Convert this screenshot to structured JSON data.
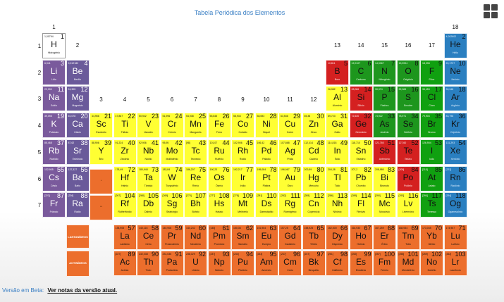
{
  "title": "Tabela Periódica dos Elementos",
  "group_labels": [
    "1",
    "2",
    "3",
    "4",
    "5",
    "6",
    "7",
    "8",
    "9",
    "10",
    "11",
    "12",
    "13",
    "14",
    "15",
    "16",
    "17",
    "18"
  ],
  "period_labels": [
    "1",
    "2",
    "3",
    "4",
    "5",
    "6",
    "7"
  ],
  "colors": {
    "alkali": "#7a5a9c",
    "alkaline_earth": "#6a5a9a",
    "transition": "#ffff33",
    "post_transition": "#ffff33",
    "metalloid": "#20a020",
    "nonmetal": "#1d961d",
    "halogen": "#10a010",
    "noble": "#2a7fc0",
    "metal_red": "#d42020",
    "lanthanide": "#ec6e2c",
    "actinide": "#ec6e2c",
    "hydrogen": "#ffffff"
  },
  "series_labels": {
    "lanthanides": "LANTANÍDEOS",
    "actinides": "ACTINÍDEOS"
  },
  "placeholder_labels": {
    "la": "*",
    "ac": "**"
  },
  "elements": [
    {
      "n": "1",
      "s": "H",
      "name": "Hidrogênio",
      "m": "1,00794",
      "row": 1,
      "col": 1,
      "cat": "hydrogen"
    },
    {
      "n": "2",
      "s": "He",
      "name": "Hélio",
      "m": "4,002602",
      "row": 1,
      "col": 18,
      "cat": "noble"
    },
    {
      "n": "3",
      "s": "Li",
      "name": "Lítio",
      "m": "6,941",
      "row": 2,
      "col": 1,
      "cat": "alkali"
    },
    {
      "n": "4",
      "s": "Be",
      "name": "Berílio",
      "m": "9,012182",
      "row": 2,
      "col": 2,
      "cat": "alkaline_earth"
    },
    {
      "n": "5",
      "s": "B",
      "name": "Boro",
      "m": "10,811",
      "row": 2,
      "col": 13,
      "cat": "metal_red"
    },
    {
      "n": "6",
      "s": "C",
      "name": "Carbono",
      "m": "12,0107",
      "row": 2,
      "col": 14,
      "cat": "nonmetal"
    },
    {
      "n": "7",
      "s": "N",
      "name": "Nitrogênio",
      "m": "14,0067",
      "row": 2,
      "col": 15,
      "cat": "nonmetal"
    },
    {
      "n": "8",
      "s": "O",
      "name": "Oxigênio",
      "m": "15,9994",
      "row": 2,
      "col": 16,
      "cat": "nonmetal"
    },
    {
      "n": "9",
      "s": "F",
      "name": "Flúor",
      "m": "18,998",
      "row": 2,
      "col": 17,
      "cat": "halogen"
    },
    {
      "n": "10",
      "s": "Ne",
      "name": "Neônio",
      "m": "20,1797",
      "row": 2,
      "col": 18,
      "cat": "noble"
    },
    {
      "n": "11",
      "s": "Na",
      "name": "Sódio",
      "m": "22,990",
      "row": 3,
      "col": 1,
      "cat": "alkali"
    },
    {
      "n": "12",
      "s": "Mg",
      "name": "Magnésio",
      "m": "24,305",
      "row": 3,
      "col": 2,
      "cat": "alkaline_earth"
    },
    {
      "n": "13",
      "s": "Al",
      "name": "Alumínio",
      "m": "26,982",
      "row": 3,
      "col": 13,
      "cat": "post_transition"
    },
    {
      "n": "14",
      "s": "Si",
      "name": "Silício",
      "m": "28,086",
      "row": 3,
      "col": 14,
      "cat": "metal_red"
    },
    {
      "n": "15",
      "s": "P",
      "name": "Fósforo",
      "m": "30,974",
      "row": 3,
      "col": 15,
      "cat": "nonmetal"
    },
    {
      "n": "16",
      "s": "S",
      "name": "Enxofre",
      "m": "32,065",
      "row": 3,
      "col": 16,
      "cat": "nonmetal"
    },
    {
      "n": "17",
      "s": "Cl",
      "name": "Cloro",
      "m": "35,453",
      "row": 3,
      "col": 17,
      "cat": "halogen"
    },
    {
      "n": "18",
      "s": "Ar",
      "name": "Argônio",
      "m": "39,948",
      "row": 3,
      "col": 18,
      "cat": "noble"
    },
    {
      "n": "19",
      "s": "K",
      "name": "Potássio",
      "m": "39,098",
      "row": 4,
      "col": 1,
      "cat": "alkali"
    },
    {
      "n": "20",
      "s": "Ca",
      "name": "Cálcio",
      "m": "40,078",
      "row": 4,
      "col": 2,
      "cat": "alkaline_earth"
    },
    {
      "n": "21",
      "s": "Sc",
      "name": "Escândio",
      "m": "44,956",
      "row": 4,
      "col": 3,
      "cat": "transition"
    },
    {
      "n": "22",
      "s": "Ti",
      "name": "Titânio",
      "m": "47,867",
      "row": 4,
      "col": 4,
      "cat": "transition"
    },
    {
      "n": "23",
      "s": "V",
      "name": "Vanádio",
      "m": "50,942",
      "row": 4,
      "col": 5,
      "cat": "transition"
    },
    {
      "n": "24",
      "s": "Cr",
      "name": "Crômio",
      "m": "51,996",
      "row": 4,
      "col": 6,
      "cat": "transition"
    },
    {
      "n": "25",
      "s": "Mn",
      "name": "Manganês",
      "m": "54,938",
      "row": 4,
      "col": 7,
      "cat": "transition"
    },
    {
      "n": "26",
      "s": "Fe",
      "name": "Ferro",
      "m": "55,845",
      "row": 4,
      "col": 8,
      "cat": "transition"
    },
    {
      "n": "27",
      "s": "Co",
      "name": "Cobalto",
      "m": "58,933",
      "row": 4,
      "col": 9,
      "cat": "transition"
    },
    {
      "n": "28",
      "s": "Ni",
      "name": "Níquel",
      "m": "58,693",
      "row": 4,
      "col": 10,
      "cat": "transition"
    },
    {
      "n": "29",
      "s": "Cu",
      "name": "Cobre",
      "m": "63,546",
      "row": 4,
      "col": 11,
      "cat": "transition"
    },
    {
      "n": "30",
      "s": "Zn",
      "name": "Zinco",
      "m": "65,38",
      "row": 4,
      "col": 12,
      "cat": "transition"
    },
    {
      "n": "31",
      "s": "Ga",
      "name": "Gálio",
      "m": "69,723",
      "row": 4,
      "col": 13,
      "cat": "post_transition"
    },
    {
      "n": "32",
      "s": "Ge",
      "name": "Germânio",
      "m": "72,630",
      "row": 4,
      "col": 14,
      "cat": "metal_red"
    },
    {
      "n": "33",
      "s": "As",
      "name": "Arsênio",
      "m": "74,922",
      "row": 4,
      "col": 15,
      "cat": "nonmetal"
    },
    {
      "n": "34",
      "s": "Se",
      "name": "Selênio",
      "m": "78,971",
      "row": 4,
      "col": 16,
      "cat": "nonmetal"
    },
    {
      "n": "35",
      "s": "Br",
      "name": "Bromo",
      "m": "79,904",
      "row": 4,
      "col": 17,
      "cat": "halogen"
    },
    {
      "n": "36",
      "s": "Kr",
      "name": "Criptônio",
      "m": "83,798",
      "row": 4,
      "col": 18,
      "cat": "noble"
    },
    {
      "n": "37",
      "s": "Rb",
      "name": "Rubídio",
      "m": "85,468",
      "row": 5,
      "col": 1,
      "cat": "alkali"
    },
    {
      "n": "38",
      "s": "Sr",
      "name": "Estrôncio",
      "m": "87,62",
      "row": 5,
      "col": 2,
      "cat": "alkaline_earth"
    },
    {
      "n": "39",
      "s": "Y",
      "name": "Ítrio",
      "m": "88,906",
      "row": 5,
      "col": 3,
      "cat": "transition"
    },
    {
      "n": "40",
      "s": "Zr",
      "name": "Zircônio",
      "m": "91,224",
      "row": 5,
      "col": 4,
      "cat": "transition"
    },
    {
      "n": "41",
      "s": "Nb",
      "name": "Nióbio",
      "m": "92,906",
      "row": 5,
      "col": 5,
      "cat": "transition"
    },
    {
      "n": "42",
      "s": "Mo",
      "name": "Molibdênio",
      "m": "95,95",
      "row": 5,
      "col": 6,
      "cat": "transition"
    },
    {
      "n": "43",
      "s": "Tc",
      "name": "Tecnécio",
      "m": "[98]",
      "row": 5,
      "col": 7,
      "cat": "transition"
    },
    {
      "n": "44",
      "s": "Ru",
      "name": "Rutênio",
      "m": "101,07",
      "row": 5,
      "col": 8,
      "cat": "transition"
    },
    {
      "n": "45",
      "s": "Rh",
      "name": "Ródio",
      "m": "102,906",
      "row": 5,
      "col": 9,
      "cat": "transition"
    },
    {
      "n": "46",
      "s": "Pd",
      "name": "Paládio",
      "m": "106,42",
      "row": 5,
      "col": 10,
      "cat": "transition"
    },
    {
      "n": "47",
      "s": "Ag",
      "name": "Prata",
      "m": "107,868",
      "row": 5,
      "col": 11,
      "cat": "transition"
    },
    {
      "n": "48",
      "s": "Cd",
      "name": "Cádmio",
      "m": "112,414",
      "row": 5,
      "col": 12,
      "cat": "transition"
    },
    {
      "n": "49",
      "s": "In",
      "name": "Índio",
      "m": "114,818",
      "row": 5,
      "col": 13,
      "cat": "post_transition"
    },
    {
      "n": "50",
      "s": "Sn",
      "name": "Estanho",
      "m": "118,710",
      "row": 5,
      "col": 14,
      "cat": "post_transition"
    },
    {
      "n": "51",
      "s": "Sb",
      "name": "Antimônio",
      "m": "121,760",
      "row": 5,
      "col": 15,
      "cat": "metal_red"
    },
    {
      "n": "52",
      "s": "Te",
      "name": "Telúrio",
      "m": "127,60",
      "row": 5,
      "col": 16,
      "cat": "metal_red"
    },
    {
      "n": "53",
      "s": "I",
      "name": "Iodo",
      "m": "126,904",
      "row": 5,
      "col": 17,
      "cat": "halogen"
    },
    {
      "n": "54",
      "s": "Xe",
      "name": "Xenônio",
      "m": "131,293",
      "row": 5,
      "col": 18,
      "cat": "noble"
    },
    {
      "n": "55",
      "s": "Cs",
      "name": "Césio",
      "m": "132,905",
      "row": 6,
      "col": 1,
      "cat": "alkali"
    },
    {
      "n": "56",
      "s": "Ba",
      "name": "Bário",
      "m": "137,327",
      "row": 6,
      "col": 2,
      "cat": "alkaline_earth"
    },
    {
      "n": "72",
      "s": "Hf",
      "name": "Háfnio",
      "m": "178,49",
      "row": 6,
      "col": 4,
      "cat": "transition"
    },
    {
      "n": "73",
      "s": "Ta",
      "name": "Tântalo",
      "m": "180,948",
      "row": 6,
      "col": 5,
      "cat": "transition"
    },
    {
      "n": "74",
      "s": "W",
      "name": "Tungstênio",
      "m": "183,84",
      "row": 6,
      "col": 6,
      "cat": "transition"
    },
    {
      "n": "75",
      "s": "Re",
      "name": "Rênio",
      "m": "186,207",
      "row": 6,
      "col": 7,
      "cat": "transition"
    },
    {
      "n": "76",
      "s": "Os",
      "name": "Ósmio",
      "m": "190,23",
      "row": 6,
      "col": 8,
      "cat": "transition"
    },
    {
      "n": "77",
      "s": "Ir",
      "name": "Irídio",
      "m": "192,217",
      "row": 6,
      "col": 9,
      "cat": "transition"
    },
    {
      "n": "78",
      "s": "Pt",
      "name": "Platina",
      "m": "195,084",
      "row": 6,
      "col": 10,
      "cat": "transition"
    },
    {
      "n": "79",
      "s": "Au",
      "name": "Ouro",
      "m": "196,967",
      "row": 6,
      "col": 11,
      "cat": "transition"
    },
    {
      "n": "80",
      "s": "Hg",
      "name": "Mercúrio",
      "m": "200,59",
      "row": 6,
      "col": 12,
      "cat": "transition"
    },
    {
      "n": "81",
      "s": "Tl",
      "name": "Tálio",
      "m": "204,38",
      "row": 6,
      "col": 13,
      "cat": "post_transition"
    },
    {
      "n": "82",
      "s": "Pb",
      "name": "Chumbo",
      "m": "207,2",
      "row": 6,
      "col": 14,
      "cat": "post_transition"
    },
    {
      "n": "83",
      "s": "Bi",
      "name": "Bismuto",
      "m": "208,980",
      "row": 6,
      "col": 15,
      "cat": "post_transition"
    },
    {
      "n": "84",
      "s": "Po",
      "name": "Polônio",
      "m": "[209]",
      "row": 6,
      "col": 16,
      "cat": "metal_red"
    },
    {
      "n": "85",
      "s": "At",
      "name": "Astato",
      "m": "[210]",
      "row": 6,
      "col": 17,
      "cat": "halogen"
    },
    {
      "n": "86",
      "s": "Rn",
      "name": "Radônio",
      "m": "[222]",
      "row": 6,
      "col": 18,
      "cat": "noble"
    },
    {
      "n": "87",
      "s": "Fr",
      "name": "Frâncio",
      "m": "[223]",
      "row": 7,
      "col": 1,
      "cat": "alkali"
    },
    {
      "n": "88",
      "s": "Ra",
      "name": "Rádio",
      "m": "[226]",
      "row": 7,
      "col": 2,
      "cat": "alkaline_earth"
    },
    {
      "n": "104",
      "s": "Rf",
      "name": "Rutherfórdio",
      "m": "[267]",
      "row": 7,
      "col": 4,
      "cat": "transition"
    },
    {
      "n": "105",
      "s": "Db",
      "name": "Dúbnio",
      "m": "[268]",
      "row": 7,
      "col": 5,
      "cat": "transition"
    },
    {
      "n": "106",
      "s": "Sg",
      "name": "Seabórgio",
      "m": "[269]",
      "row": 7,
      "col": 6,
      "cat": "transition"
    },
    {
      "n": "107",
      "s": "Bh",
      "name": "Bóhrio",
      "m": "[270]",
      "row": 7,
      "col": 7,
      "cat": "transition"
    },
    {
      "n": "108",
      "s": "Hs",
      "name": "Hássio",
      "m": "[277]",
      "row": 7,
      "col": 8,
      "cat": "transition"
    },
    {
      "n": "109",
      "s": "Mt",
      "name": "Meitnério",
      "m": "[278]",
      "row": 7,
      "col": 9,
      "cat": "transition"
    },
    {
      "n": "110",
      "s": "Ds",
      "name": "Darmstádtio",
      "m": "[281]",
      "row": 7,
      "col": 10,
      "cat": "transition"
    },
    {
      "n": "111",
      "s": "Rg",
      "name": "Roentgênio",
      "m": "[282]",
      "row": 7,
      "col": 11,
      "cat": "transition"
    },
    {
      "n": "112",
      "s": "Cn",
      "name": "Copernício",
      "m": "[285]",
      "row": 7,
      "col": 12,
      "cat": "transition"
    },
    {
      "n": "113",
      "s": "Nh",
      "name": "Nihônio",
      "m": "[286]",
      "row": 7,
      "col": 13,
      "cat": "post_transition"
    },
    {
      "n": "114",
      "s": "Fl",
      "name": "Fleróvio",
      "m": "[289]",
      "row": 7,
      "col": 14,
      "cat": "post_transition"
    },
    {
      "n": "115",
      "s": "Mc",
      "name": "Moscóvio",
      "m": "[290]",
      "row": 7,
      "col": 15,
      "cat": "post_transition"
    },
    {
      "n": "116",
      "s": "Lv",
      "name": "Livermório",
      "m": "[293]",
      "row": 7,
      "col": 16,
      "cat": "post_transition"
    },
    {
      "n": "117",
      "s": "Ts",
      "name": "Tenesso",
      "m": "[294]",
      "row": 7,
      "col": 17,
      "cat": "halogen"
    },
    {
      "n": "118",
      "s": "Og",
      "name": "Oganessônio",
      "m": "[294]",
      "row": 7,
      "col": 18,
      "cat": "noble"
    },
    {
      "n": "57",
      "s": "La",
      "name": "Lantânio",
      "m": "138,905",
      "row": 8,
      "col": 4,
      "cat": "lanthanide"
    },
    {
      "n": "58",
      "s": "Ce",
      "name": "Cério",
      "m": "140,116",
      "row": 8,
      "col": 5,
      "cat": "lanthanide"
    },
    {
      "n": "59",
      "s": "Pr",
      "name": "Praseodímio",
      "m": "140,908",
      "row": 8,
      "col": 6,
      "cat": "lanthanide"
    },
    {
      "n": "60",
      "s": "Nd",
      "name": "Neodímio",
      "m": "144,242",
      "row": 8,
      "col": 7,
      "cat": "lanthanide"
    },
    {
      "n": "61",
      "s": "Pm",
      "name": "Promécio",
      "m": "[145]",
      "row": 8,
      "col": 8,
      "cat": "lanthanide"
    },
    {
      "n": "62",
      "s": "Sm",
      "name": "Samário",
      "m": "150,36",
      "row": 8,
      "col": 9,
      "cat": "lanthanide"
    },
    {
      "n": "63",
      "s": "Eu",
      "name": "Európio",
      "m": "151,964",
      "row": 8,
      "col": 10,
      "cat": "lanthanide"
    },
    {
      "n": "64",
      "s": "Gd",
      "name": "Gadolínio",
      "m": "157,25",
      "row": 8,
      "col": 11,
      "cat": "lanthanide"
    },
    {
      "n": "65",
      "s": "Tb",
      "name": "Térbio",
      "m": "158,925",
      "row": 8,
      "col": 12,
      "cat": "lanthanide"
    },
    {
      "n": "66",
      "s": "Dy",
      "name": "Disprósio",
      "m": "162,500",
      "row": 8,
      "col": 13,
      "cat": "lanthanide"
    },
    {
      "n": "67",
      "s": "Ho",
      "name": "Hólmio",
      "m": "164,930",
      "row": 8,
      "col": 14,
      "cat": "lanthanide"
    },
    {
      "n": "68",
      "s": "Er",
      "name": "Érbio",
      "m": "167,259",
      "row": 8,
      "col": 15,
      "cat": "lanthanide"
    },
    {
      "n": "69",
      "s": "Tm",
      "name": "Túlio",
      "m": "168,934",
      "row": 8,
      "col": 16,
      "cat": "lanthanide"
    },
    {
      "n": "70",
      "s": "Yb",
      "name": "Itérbio",
      "m": "173,045",
      "row": 8,
      "col": 17,
      "cat": "lanthanide"
    },
    {
      "n": "71",
      "s": "Lu",
      "name": "Lutécio",
      "m": "174,967",
      "row": 8,
      "col": 18,
      "cat": "lanthanide"
    },
    {
      "n": "89",
      "s": "Ac",
      "name": "Actínio",
      "m": "[227]",
      "row": 9,
      "col": 4,
      "cat": "actinide"
    },
    {
      "n": "90",
      "s": "Th",
      "name": "Tório",
      "m": "232,038",
      "row": 9,
      "col": 5,
      "cat": "actinide"
    },
    {
      "n": "91",
      "s": "Pa",
      "name": "Protactínio",
      "m": "231,036",
      "row": 9,
      "col": 6,
      "cat": "actinide"
    },
    {
      "n": "92",
      "s": "U",
      "name": "Urânio",
      "m": "238,029",
      "row": 9,
      "col": 7,
      "cat": "actinide"
    },
    {
      "n": "93",
      "s": "Np",
      "name": "Netúnio",
      "m": "[237]",
      "row": 9,
      "col": 8,
      "cat": "actinide"
    },
    {
      "n": "94",
      "s": "Pu",
      "name": "Plutônio",
      "m": "[244]",
      "row": 9,
      "col": 9,
      "cat": "actinide"
    },
    {
      "n": "95",
      "s": "Am",
      "name": "Amerício",
      "m": "[243]",
      "row": 9,
      "col": 10,
      "cat": "actinide"
    },
    {
      "n": "96",
      "s": "Cm",
      "name": "Cúrio",
      "m": "[247]",
      "row": 9,
      "col": 11,
      "cat": "actinide"
    },
    {
      "n": "97",
      "s": "Bk",
      "name": "Berquélio",
      "m": "[247]",
      "row": 9,
      "col": 12,
      "cat": "actinide"
    },
    {
      "n": "98",
      "s": "Cf",
      "name": "Califórnio",
      "m": "[251]",
      "row": 9,
      "col": 13,
      "cat": "actinide"
    },
    {
      "n": "99",
      "s": "Es",
      "name": "Einstênio",
      "m": "[252]",
      "row": 9,
      "col": 14,
      "cat": "actinide"
    },
    {
      "n": "100",
      "s": "Fm",
      "name": "Férmio",
      "m": "[257]",
      "row": 9,
      "col": 15,
      "cat": "actinide"
    },
    {
      "n": "101",
      "s": "Md",
      "name": "Mendelévio",
      "m": "[258]",
      "row": 9,
      "col": 16,
      "cat": "actinide"
    },
    {
      "n": "102",
      "s": "No",
      "name": "Nobélio",
      "m": "[259]",
      "row": 9,
      "col": 17,
      "cat": "actinide"
    },
    {
      "n": "103",
      "s": "Lr",
      "name": "Laurêncio",
      "m": "[262]",
      "row": 9,
      "col": 18,
      "cat": "actinide"
    }
  ],
  "footer": {
    "beta_text": "Versão em Beta:",
    "link_text": "Ver notas da versão atual."
  }
}
